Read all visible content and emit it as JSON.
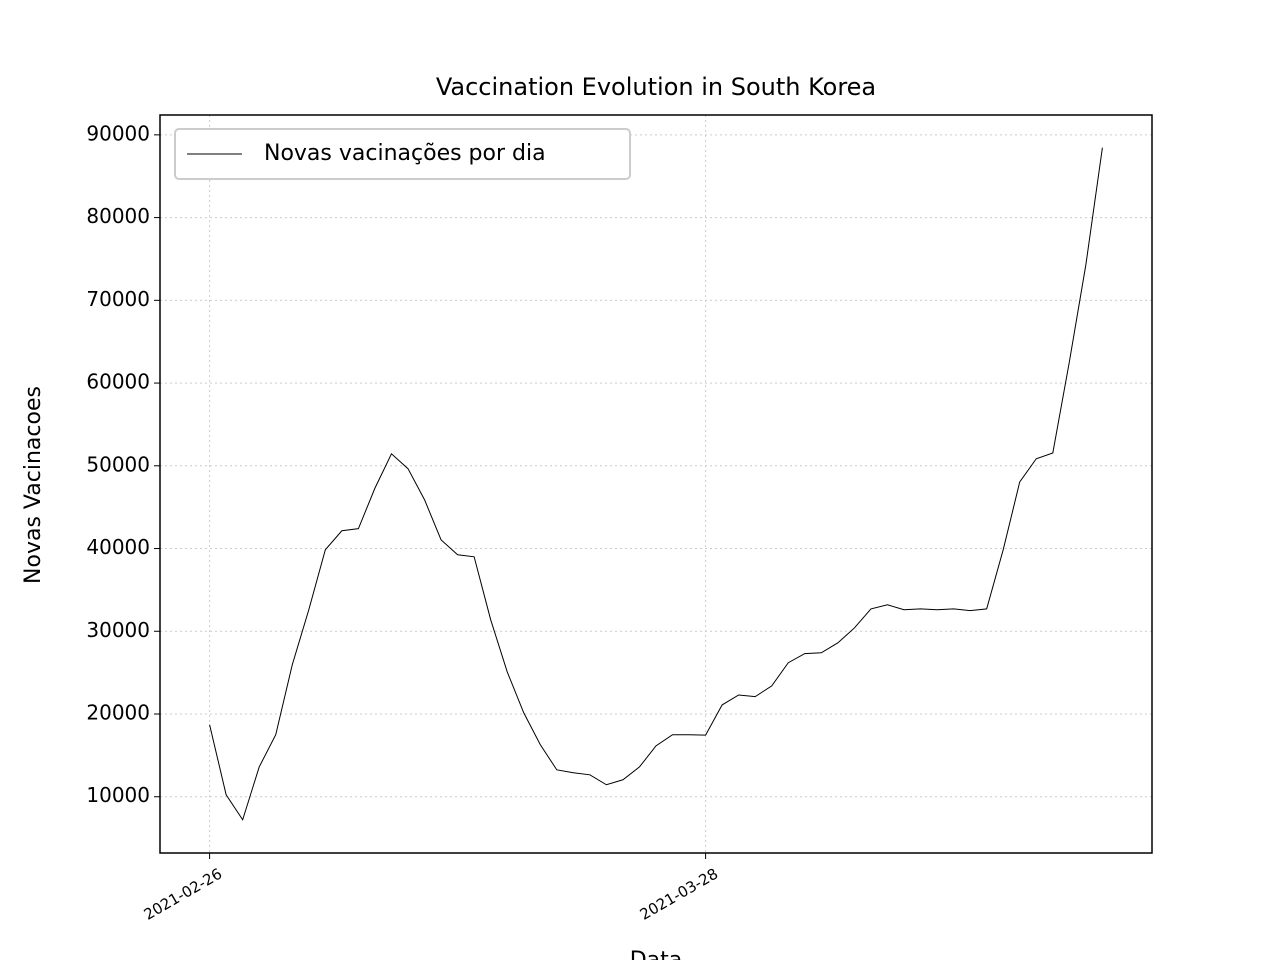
{
  "chart_data": {
    "type": "line",
    "title": "Vaccination Evolution in South Korea",
    "xlabel": "Data",
    "ylabel": "Novas Vacinacoes",
    "x": [
      "2021-02-26",
      "2021-02-27",
      "2021-02-28",
      "2021-03-01",
      "2021-03-02",
      "2021-03-03",
      "2021-03-04",
      "2021-03-05",
      "2021-03-06",
      "2021-03-07",
      "2021-03-08",
      "2021-03-09",
      "2021-03-10",
      "2021-03-11",
      "2021-03-12",
      "2021-03-13",
      "2021-03-14",
      "2021-03-15",
      "2021-03-16",
      "2021-03-17",
      "2021-03-18",
      "2021-03-19",
      "2021-03-20",
      "2021-03-21",
      "2021-03-22",
      "2021-03-23",
      "2021-03-24",
      "2021-03-25",
      "2021-03-26",
      "2021-03-27",
      "2021-03-28",
      "2021-03-29",
      "2021-03-30",
      "2021-03-31",
      "2021-04-01",
      "2021-04-02",
      "2021-04-03",
      "2021-04-04",
      "2021-04-05",
      "2021-04-06",
      "2021-04-07",
      "2021-04-08",
      "2021-04-09",
      "2021-04-10",
      "2021-04-11",
      "2021-04-12",
      "2021-04-13",
      "2021-04-14",
      "2021-04-15",
      "2021-04-16",
      "2021-04-17",
      "2021-04-18",
      "2021-04-19",
      "2021-04-20",
      "2021-04-21"
    ],
    "series": [
      {
        "name": "Novas vacinações por dia",
        "color": "#000000",
        "values": [
          18700,
          10240,
          7220,
          13600,
          17500,
          25950,
          32600,
          39850,
          42150,
          42400,
          47300,
          51450,
          49650,
          45900,
          41050,
          39250,
          39000,
          31400,
          25100,
          20150,
          16300,
          13250,
          12900,
          12650,
          11450,
          12050,
          13600,
          16150,
          17500,
          17500,
          17450,
          21100,
          22300,
          22100,
          23400,
          26200,
          27300,
          27400,
          28600,
          30400,
          32700,
          33200,
          32600,
          32700,
          32600,
          32700,
          32500,
          32700,
          39850,
          48050,
          50850,
          51550,
          62550,
          74300,
          88450
        ]
      }
    ],
    "xlim": [
      "2021-02-23",
      "2021-04-24"
    ],
    "xticks": [
      "2021-02-26",
      "2021-03-28"
    ],
    "ylim": [
      3200,
      92400
    ],
    "yticks": [
      10000,
      20000,
      30000,
      40000,
      50000,
      60000,
      70000,
      80000,
      90000
    ],
    "grid": true,
    "legend": "upper left"
  }
}
